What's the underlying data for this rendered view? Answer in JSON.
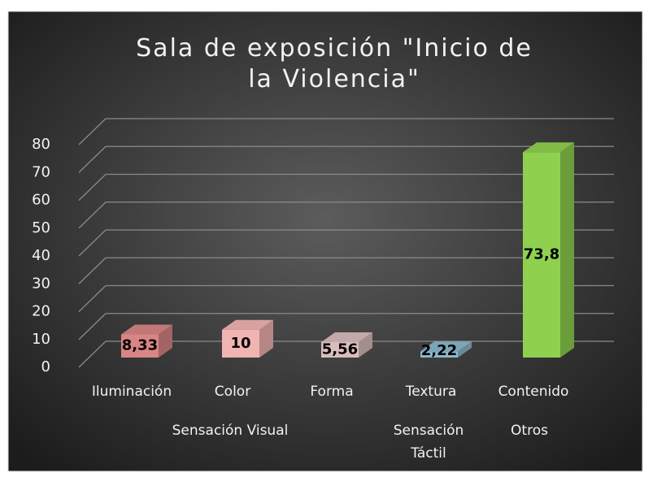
{
  "chart_data": {
    "type": "bar3d",
    "title": "Sala de exposición \"Inicio de la Violencia\"",
    "categories": [
      "Iluminación",
      "Color",
      "Forma",
      "Textura",
      "Contenido"
    ],
    "values": [
      8.33,
      10,
      5.56,
      2.22,
      73.8
    ],
    "value_labels": [
      "8,33",
      "10",
      "5,56",
      "2,22",
      "73,8"
    ],
    "colors": [
      "#d98585",
      "#f2b3b3",
      "#d9bcbc",
      "#8ab8cc",
      "#8fd14f"
    ],
    "groups": [
      {
        "label": "Sensación Visual",
        "lines": [
          "Sensación Visual"
        ]
      },
      {
        "label": "Sensación Táctil",
        "lines": [
          "Sensación",
          "Táctil"
        ]
      },
      {
        "label": "Otros",
        "lines": [
          "Otros"
        ]
      }
    ],
    "ylim": [
      0,
      80
    ],
    "yticks": [
      0,
      10,
      20,
      30,
      40,
      50,
      60,
      70,
      80
    ],
    "grid": true
  }
}
